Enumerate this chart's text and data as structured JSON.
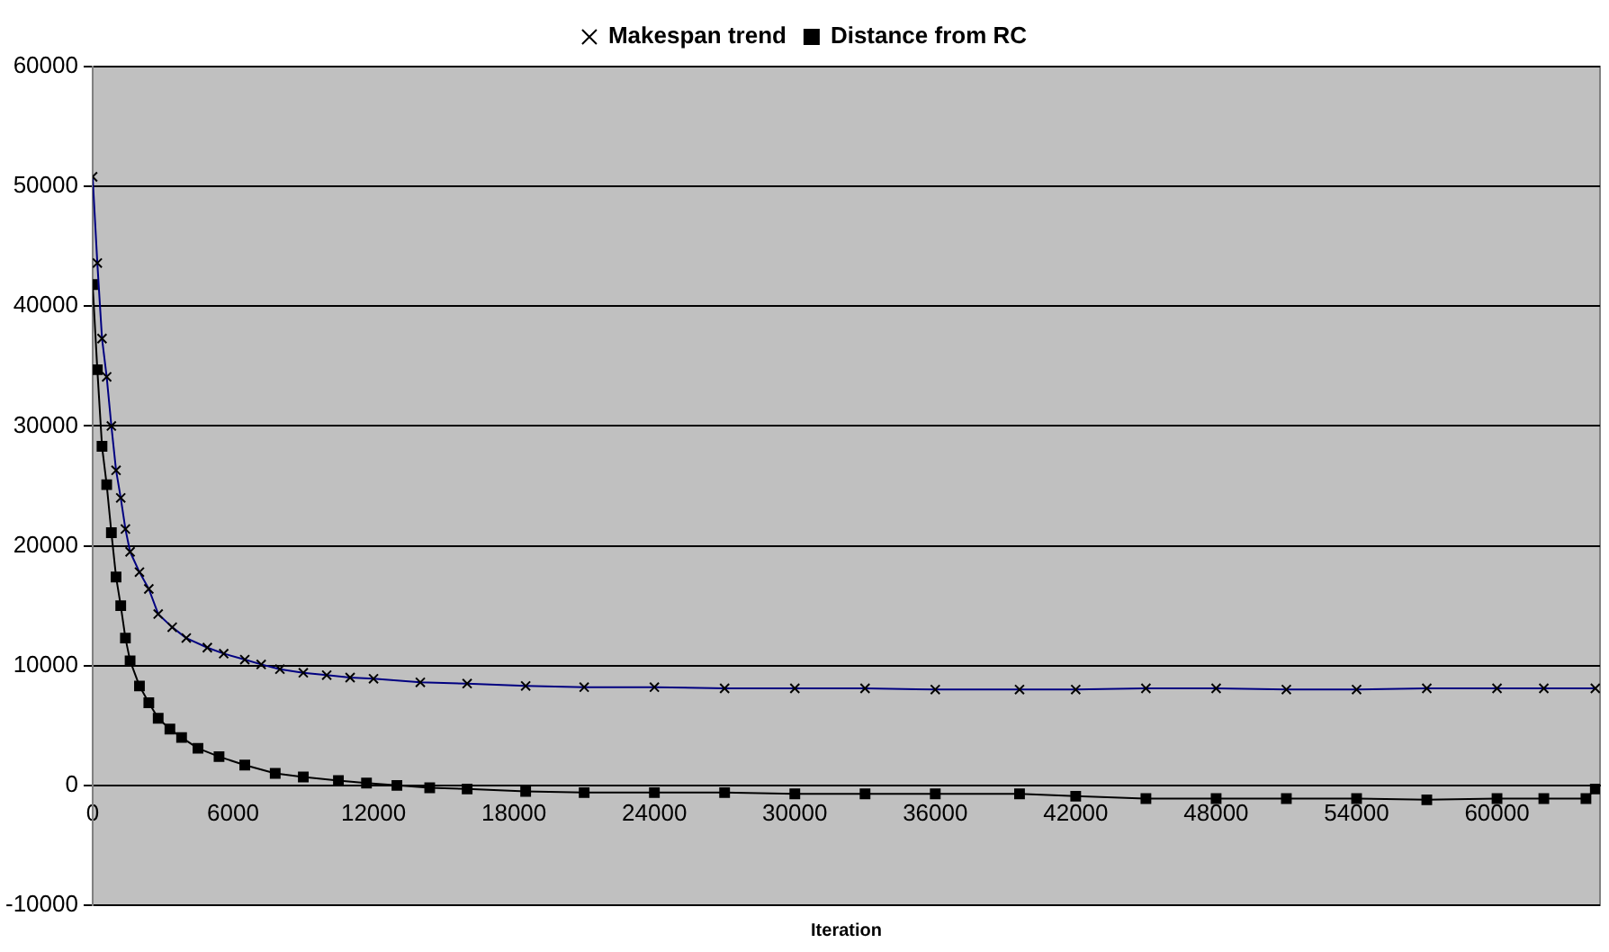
{
  "chart_data": {
    "type": "line",
    "xlabel": "Iteration",
    "xlim": [
      0,
      64400
    ],
    "xticks": [
      0,
      6000,
      12000,
      18000,
      24000,
      30000,
      36000,
      42000,
      48000,
      54000,
      60000
    ],
    "ylim": [
      -10000,
      60000
    ],
    "yticks": [
      -10000,
      0,
      10000,
      20000,
      30000,
      40000,
      50000,
      60000
    ],
    "grid": "y",
    "legend": "top",
    "line_style": "solid",
    "series": [
      {
        "name": "Makespan trend",
        "color": "#000080",
        "marker": "cross",
        "x": [
          0,
          200,
          400,
          600,
          800,
          1000,
          1200,
          1400,
          1600,
          2000,
          2400,
          2800,
          3400,
          4000,
          4900,
          5600,
          6500,
          7200,
          8000,
          9000,
          10000,
          11000,
          12000,
          14000,
          16000,
          18500,
          21000,
          24000,
          27000,
          30000,
          33000,
          36000,
          39600,
          42000,
          45000,
          48000,
          51000,
          54000,
          57000,
          60000,
          62000,
          64200
        ],
        "values": [
          50800,
          43600,
          37300,
          34100,
          30000,
          26300,
          24000,
          21400,
          19500,
          17800,
          16400,
          14300,
          13200,
          12300,
          11500,
          11000,
          10500,
          10100,
          9700,
          9400,
          9200,
          9000,
          8900,
          8600,
          8500,
          8300,
          8200,
          8200,
          8100,
          8100,
          8100,
          8000,
          8000,
          8000,
          8100,
          8100,
          8000,
          8000,
          8100,
          8100,
          8100,
          8100
        ]
      },
      {
        "name": "Distance from RC",
        "color": "#000000",
        "marker": "square",
        "x": [
          0,
          200,
          400,
          600,
          800,
          1000,
          1200,
          1400,
          1600,
          2000,
          2400,
          2800,
          3300,
          3800,
          4500,
          5400,
          6500,
          7800,
          9000,
          10500,
          11700,
          13000,
          14400,
          16000,
          18500,
          21000,
          24000,
          27000,
          30000,
          33000,
          36000,
          39600,
          42000,
          45000,
          48000,
          51000,
          54000,
          57000,
          60000,
          62000,
          63800,
          64200
        ],
        "values": [
          41800,
          34700,
          28300,
          25100,
          21100,
          17400,
          15000,
          12300,
          10400,
          8300,
          6900,
          5600,
          4700,
          4000,
          3100,
          2400,
          1700,
          1000,
          700,
          400,
          200,
          0,
          -200,
          -300,
          -500,
          -600,
          -600,
          -600,
          -700,
          -700,
          -700,
          -700,
          -900,
          -1100,
          -1100,
          -1100,
          -1100,
          -1200,
          -1100,
          -1100,
          -1100,
          -300
        ]
      }
    ]
  }
}
